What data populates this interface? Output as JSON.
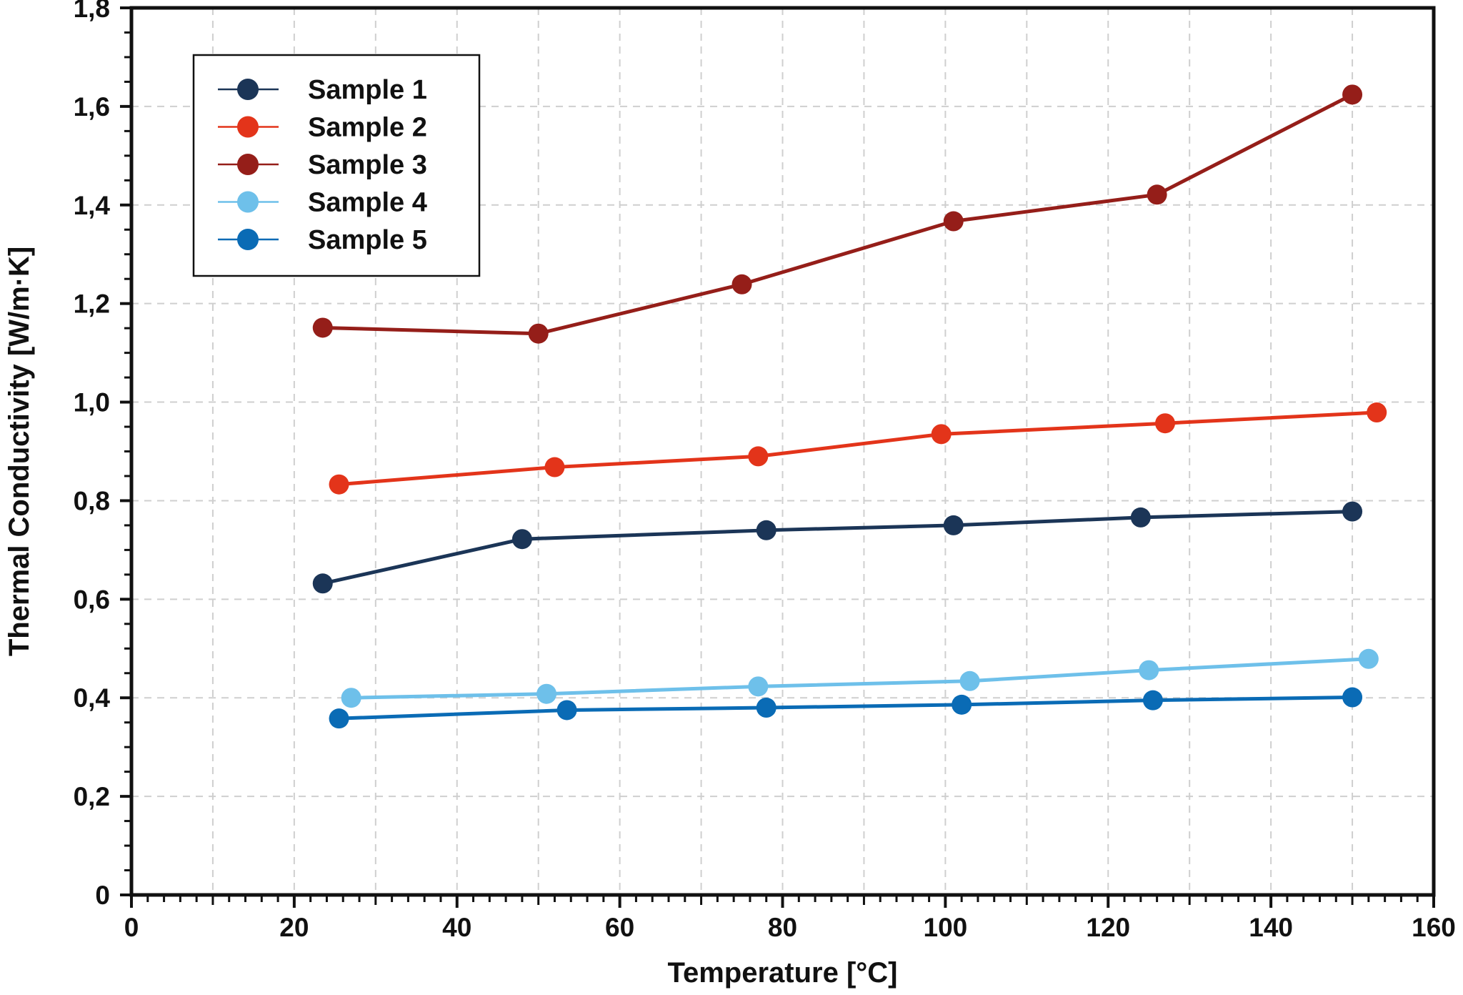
{
  "chart_data": {
    "type": "line",
    "title": "",
    "xlabel": "Temperature [°C]",
    "ylabel": "Thermal Conductivity [W/m·K]",
    "xlim": [
      0,
      160
    ],
    "ylim": [
      0,
      1.8
    ],
    "x_ticks": [
      0,
      20,
      40,
      60,
      80,
      100,
      120,
      140,
      160
    ],
    "x_tick_labels": [
      "0",
      "20",
      "40",
      "60",
      "80",
      "100",
      "120",
      "140",
      "160"
    ],
    "y_ticks": [
      0,
      0.2,
      0.4,
      0.6,
      0.8,
      1.0,
      1.2,
      1.4,
      1.6,
      1.8
    ],
    "y_tick_labels": [
      "0",
      "0,2",
      "0,4",
      "0,6",
      "0,8",
      "1,0",
      "1,2",
      "1,4",
      "1,6",
      "1,8"
    ],
    "grid": true,
    "legend_position": "top-left",
    "series": [
      {
        "name": "Sample 1",
        "color": "#1b3557",
        "x": [
          23.5,
          48,
          78,
          101,
          124,
          150
        ],
        "y": [
          0.632,
          0.722,
          0.74,
          0.75,
          0.766,
          0.778
        ]
      },
      {
        "name": "Sample 2",
        "color": "#e3341a",
        "x": [
          25.5,
          52,
          77,
          99.5,
          127,
          153
        ],
        "y": [
          0.833,
          0.868,
          0.89,
          0.935,
          0.957,
          0.979
        ]
      },
      {
        "name": "Sample 3",
        "color": "#951e19",
        "x": [
          23.5,
          50,
          75,
          101,
          126,
          150
        ],
        "y": [
          1.151,
          1.139,
          1.239,
          1.367,
          1.421,
          1.624
        ]
      },
      {
        "name": "Sample 4",
        "color": "#6ec0ea",
        "x": [
          27,
          51,
          77,
          103,
          125,
          152
        ],
        "y": [
          0.4,
          0.408,
          0.423,
          0.434,
          0.456,
          0.479
        ]
      },
      {
        "name": "Sample 5",
        "color": "#0a6bb5",
        "x": [
          25.5,
          53.5,
          78,
          102,
          125.5,
          150
        ],
        "y": [
          0.358,
          0.375,
          0.38,
          0.386,
          0.395,
          0.401
        ]
      }
    ]
  }
}
